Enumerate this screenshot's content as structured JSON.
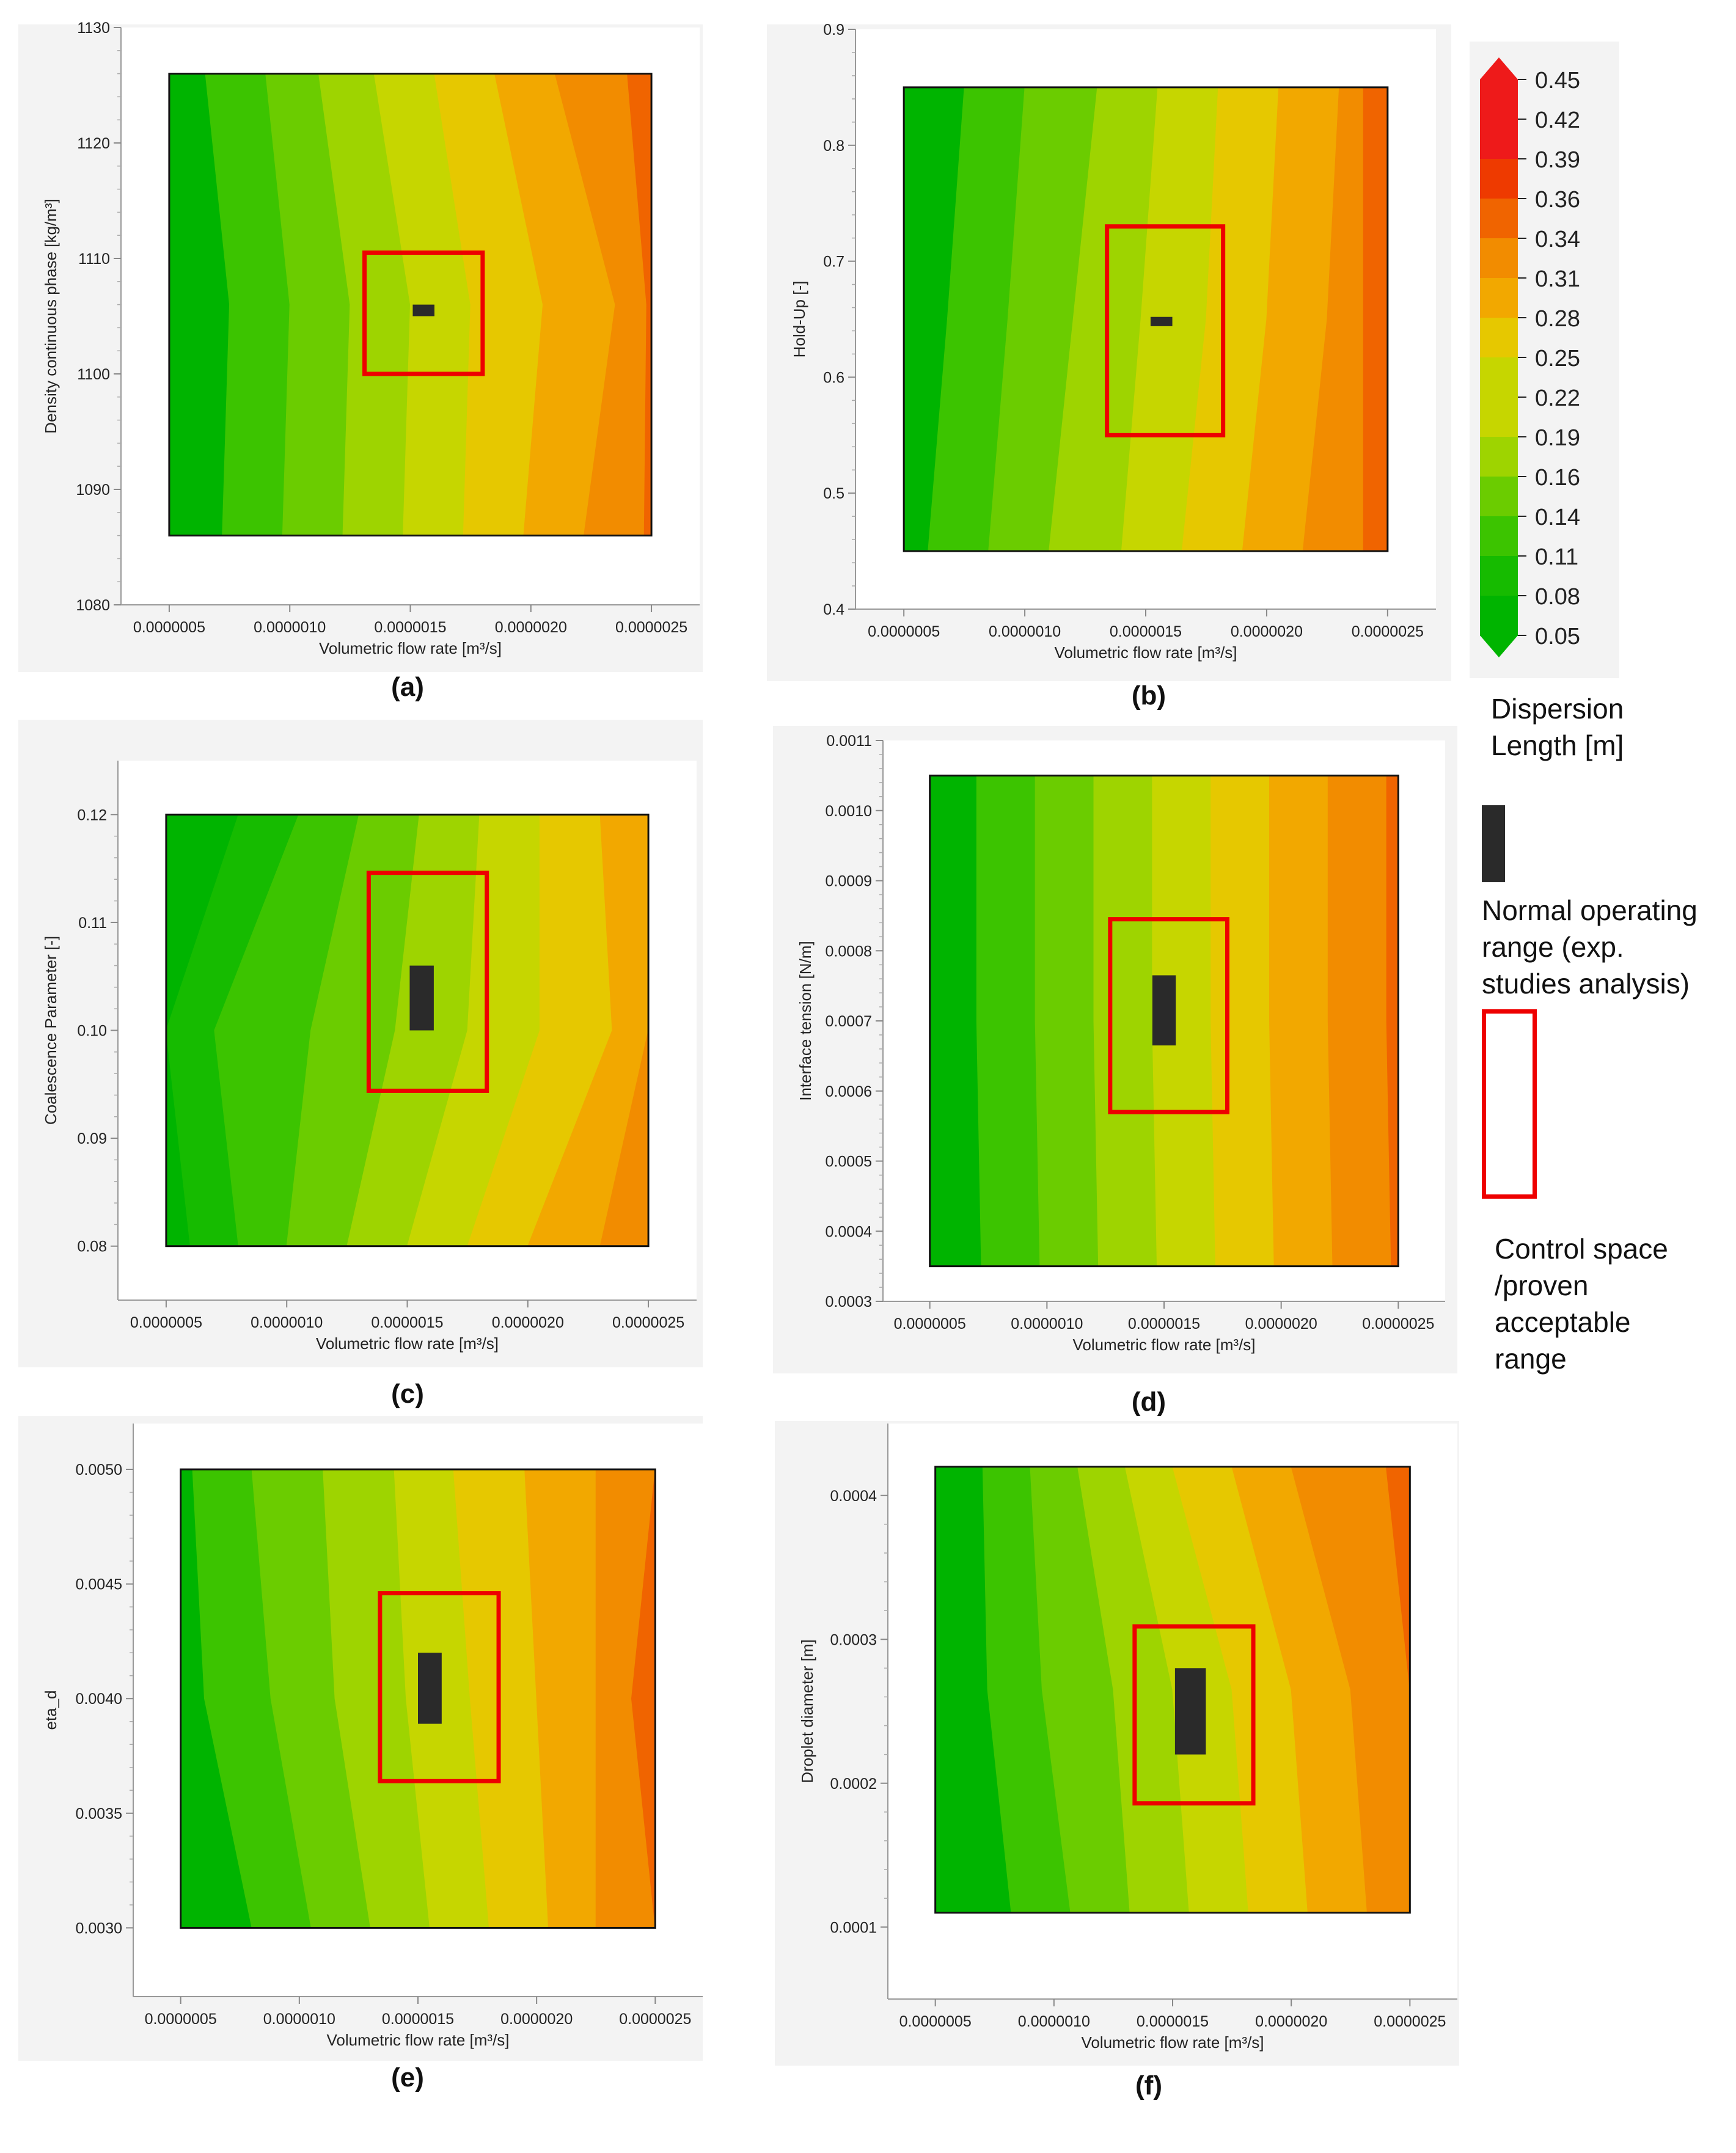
{
  "colors": {
    "contour_levels": [
      "#00b400",
      "#16bb00",
      "#3cc400",
      "#6bcc00",
      "#9ed400",
      "#c6d600",
      "#e6c800",
      "#f2a800",
      "#f28c00",
      "#f06400",
      "#ee3a00",
      "#ee1a1a"
    ],
    "control_box": "#ee0000",
    "operating_range": "#2a2a2a",
    "panel_bg": "#f3f3f3"
  },
  "legend": {
    "ticks": [
      "0.45",
      "0.42",
      "0.39",
      "0.36",
      "0.34",
      "0.31",
      "0.28",
      "0.25",
      "0.22",
      "0.19",
      "0.16",
      "0.14",
      "0.11",
      "0.08",
      "0.05"
    ],
    "title_line1": "Dispersion",
    "title_line2": "Length [m]",
    "normal_line1": "Normal operating",
    "normal_line2": "range (exp.",
    "normal_line3": "studies analysis)",
    "control_line1": "Control space",
    "control_line2": "/proven",
    "control_line3": "acceptable",
    "control_line4": "range"
  },
  "chart_data": [
    {
      "type": "heatmap",
      "label": "(a)",
      "xlabel": "Volumetric flow rate [m³/s]",
      "ylabel": "Density continuous phase [kg/m³]",
      "xlim": [
        3e-07,
        2.7e-06
      ],
      "x_ticks": [
        "0.0000005",
        "0.0000010",
        "0.0000015",
        "0.0000020",
        "0.0000025"
      ],
      "x_tick_values": [
        5e-07,
        1e-06,
        1.5e-06,
        2e-06,
        2.5e-06
      ],
      "ylim": [
        1080,
        1130
      ],
      "y_ticks": [
        "1080",
        "1090",
        "1100",
        "1110",
        "1120",
        "1130"
      ],
      "y_tick_values": [
        1080,
        1090,
        1100,
        1110,
        1120,
        1130
      ],
      "plot_x": [
        5e-07,
        2.5e-06
      ],
      "plot_y": [
        1086,
        1126
      ],
      "control_space": {
        "x": [
          1.31e-06,
          1.8e-06
        ],
        "y": [
          1100,
          1110.5
        ]
      },
      "operating_range": {
        "x": [
          1.51e-06,
          1.6e-06
        ],
        "y": [
          1105,
          1106
        ]
      },
      "band_x_bottom": [
        7.2e-07,
        9.7e-07,
        1.22e-06,
        1.47e-06,
        1.72e-06,
        1.97e-06,
        2.22e-06,
        2.47e-06
      ],
      "band_x_mid": [
        7.5e-07,
        1e-06,
        1.25e-06,
        1.5e-06,
        1.75e-06,
        2.05e-06,
        2.35e-06,
        2.48e-06
      ],
      "band_x_top": [
        6.5e-07,
        9e-07,
        1.12e-06,
        1.35e-06,
        1.6e-06,
        1.85e-06,
        2.1e-06,
        2.4e-06
      ],
      "band_levels": [
        0,
        2,
        3,
        4,
        5,
        6,
        7,
        8,
        9
      ]
    },
    {
      "type": "heatmap",
      "label": "(b)",
      "xlabel": "Volumetric flow rate [m³/s]",
      "ylabel": "Hold-Up [-]",
      "xlim": [
        3e-07,
        2.7e-06
      ],
      "x_ticks": [
        "0.0000005",
        "0.0000010",
        "0.0000015",
        "0.0000020",
        "0.0000025"
      ],
      "x_tick_values": [
        5e-07,
        1e-06,
        1.5e-06,
        2e-06,
        2.5e-06
      ],
      "ylim": [
        0.4,
        0.9
      ],
      "y_ticks": [
        "0.4",
        "0.5",
        "0.6",
        "0.7",
        "0.8",
        "0.9"
      ],
      "y_tick_values": [
        0.4,
        0.5,
        0.6,
        0.7,
        0.8,
        0.9
      ],
      "plot_x": [
        5e-07,
        2.5e-06
      ],
      "plot_y": [
        0.45,
        0.85
      ],
      "control_space": {
        "x": [
          1.34e-06,
          1.82e-06
        ],
        "y": [
          0.55,
          0.73
        ]
      },
      "operating_range": {
        "x": [
          1.52e-06,
          1.61e-06
        ],
        "y": [
          0.644,
          0.652
        ]
      },
      "band_x_bottom": [
        6e-07,
        8.5e-07,
        1.1e-06,
        1.4e-06,
        1.65e-06,
        1.9e-06,
        2.15e-06,
        2.4e-06
      ],
      "band_x_mid": [
        6.8e-07,
        9.3e-07,
        1.2e-06,
        1.48e-06,
        1.75e-06,
        2e-06,
        2.25e-06,
        2.4e-06
      ],
      "band_x_top": [
        7.5e-07,
        1e-06,
        1.3e-06,
        1.55e-06,
        1.8e-06,
        2.05e-06,
        2.3e-06,
        2.4e-06
      ],
      "band_levels": [
        0,
        2,
        3,
        4,
        5,
        6,
        7,
        8,
        9
      ]
    },
    {
      "type": "heatmap",
      "label": "(c)",
      "xlabel": "Volumetric flow rate [m³/s]",
      "ylabel": "Coalescence Parameter [-]",
      "xlim": [
        3e-07,
        2.7e-06
      ],
      "x_ticks": [
        "0.0000005",
        "0.0000010",
        "0.0000015",
        "0.0000020",
        "0.0000025"
      ],
      "x_tick_values": [
        5e-07,
        1e-06,
        1.5e-06,
        2e-06,
        2.5e-06
      ],
      "ylim": [
        0.075,
        0.125
      ],
      "y_ticks": [
        "0.08",
        "0.09",
        "0.10",
        "0.11",
        "0.12"
      ],
      "y_tick_values": [
        0.08,
        0.09,
        0.1,
        0.11,
        0.12
      ],
      "plot_x": [
        5e-07,
        2.5e-06
      ],
      "plot_y": [
        0.08,
        0.12
      ],
      "control_space": {
        "x": [
          1.34e-06,
          1.83e-06
        ],
        "y": [
          0.0944,
          0.1146
        ]
      },
      "operating_range": {
        "x": [
          1.51e-06,
          1.61e-06
        ],
        "y": [
          0.1,
          0.106
        ]
      },
      "band_x_bottom": [
        6e-07,
        8e-07,
        1e-06,
        1.25e-06,
        1.5e-06,
        1.75e-06,
        2e-06,
        2.3e-06,
        2.5e-06
      ],
      "band_x_mid": [
        5e-07,
        7e-07,
        1.1e-06,
        1.45e-06,
        1.75e-06,
        2.05e-06,
        2.35e-06,
        2.5e-06,
        2.5e-06
      ],
      "band_x_top": [
        8e-07,
        1.05e-06,
        1.3e-06,
        1.55e-06,
        1.8e-06,
        2.05e-06,
        2.3e-06,
        2.5e-06,
        2.5e-06
      ],
      "band_levels": [
        0,
        1,
        2,
        3,
        4,
        5,
        6,
        7,
        8,
        9
      ]
    },
    {
      "type": "heatmap",
      "label": "(d)",
      "xlabel": "Volumetric flow rate [m³/s]",
      "ylabel": "Interface tension [N/m]",
      "xlim": [
        3e-07,
        2.7e-06
      ],
      "x_ticks": [
        "0.0000005",
        "0.0000010",
        "0.0000015",
        "0.0000020",
        "0.0000025"
      ],
      "x_tick_values": [
        5e-07,
        1e-06,
        1.5e-06,
        2e-06,
        2.5e-06
      ],
      "ylim": [
        0.0003,
        0.0011
      ],
      "y_ticks": [
        "0.0003",
        "0.0004",
        "0.0005",
        "0.0006",
        "0.0007",
        "0.0008",
        "0.0009",
        "0.0010",
        "0.0011"
      ],
      "y_tick_values": [
        0.0003,
        0.0004,
        0.0005,
        0.0006,
        0.0007,
        0.0008,
        0.0009,
        0.001,
        0.0011
      ],
      "plot_x": [
        5e-07,
        2.5e-06
      ],
      "plot_y": [
        0.00035,
        0.00105
      ],
      "control_space": {
        "x": [
          1.27e-06,
          1.77e-06
        ],
        "y": [
          0.00057,
          0.000845
        ]
      },
      "operating_range": {
        "x": [
          1.45e-06,
          1.55e-06
        ],
        "y": [
          0.000665,
          0.000765
        ]
      },
      "band_x_bottom": [
        7.2e-07,
        9.7e-07,
        1.22e-06,
        1.47e-06,
        1.72e-06,
        1.97e-06,
        2.22e-06,
        2.47e-06
      ],
      "band_x_mid": [
        7e-07,
        9.5e-07,
        1.2e-06,
        1.45e-06,
        1.7e-06,
        1.95e-06,
        2.2e-06,
        2.45e-06
      ],
      "band_x_top": [
        7e-07,
        9.5e-07,
        1.2e-06,
        1.45e-06,
        1.7e-06,
        1.95e-06,
        2.2e-06,
        2.45e-06
      ],
      "band_levels": [
        0,
        2,
        3,
        4,
        5,
        6,
        7,
        8,
        9
      ]
    },
    {
      "type": "heatmap",
      "label": "(e)",
      "xlabel": "Volumetric flow rate [m³/s]",
      "ylabel": "eta_d",
      "xlim": [
        3e-07,
        2.7e-06
      ],
      "x_ticks": [
        "0.0000005",
        "0.0000010",
        "0.0000015",
        "0.0000020",
        "0.0000025"
      ],
      "x_tick_values": [
        5e-07,
        1e-06,
        1.5e-06,
        2e-06,
        2.5e-06
      ],
      "ylim": [
        0.0027,
        0.0052
      ],
      "y_ticks": [
        "0.0030",
        "0.0035",
        "0.0040",
        "0.0045",
        "0.0050"
      ],
      "y_tick_values": [
        0.003,
        0.0035,
        0.004,
        0.0045,
        0.005
      ],
      "plot_x": [
        5e-07,
        2.5e-06
      ],
      "plot_y": [
        0.003,
        0.005
      ],
      "control_space": {
        "x": [
          1.34e-06,
          1.84e-06
        ],
        "y": [
          0.00364,
          0.00446
        ]
      },
      "operating_range": {
        "x": [
          1.5e-06,
          1.6e-06
        ],
        "y": [
          0.00389,
          0.0042
        ]
      },
      "band_x_bottom": [
        8e-07,
        1.05e-06,
        1.3e-06,
        1.55e-06,
        1.8e-06,
        2.05e-06,
        2.25e-06,
        2.5e-06
      ],
      "band_x_mid": [
        6e-07,
        8.8e-07,
        1.15e-06,
        1.45e-06,
        1.72e-06,
        2e-06,
        2.25e-06,
        2.4e-06
      ],
      "band_x_top": [
        5.5e-07,
        8e-07,
        1.1e-06,
        1.4e-06,
        1.65e-06,
        1.95e-06,
        2.25e-06,
        2.5e-06
      ],
      "band_levels": [
        0,
        2,
        3,
        4,
        5,
        6,
        7,
        8,
        9
      ]
    },
    {
      "type": "heatmap",
      "label": "(f)",
      "xlabel": "Volumetric flow rate [m³/s]",
      "ylabel": "Droplet diameter [m]",
      "xlim": [
        3e-07,
        2.7e-06
      ],
      "x_ticks": [
        "0.0000005",
        "0.0000010",
        "0.0000015",
        "0.0000020",
        "0.0000025"
      ],
      "x_tick_values": [
        5e-07,
        1e-06,
        1.5e-06,
        2e-06,
        2.5e-06
      ],
      "ylim": [
        5e-05,
        0.00045
      ],
      "y_ticks": [
        "0.0001",
        "0.0002",
        "0.0003",
        "0.0004"
      ],
      "y_tick_values": [
        0.0001,
        0.0002,
        0.0003,
        0.0004
      ],
      "plot_x": [
        5e-07,
        2.5e-06
      ],
      "plot_y": [
        0.00011,
        0.00042
      ],
      "control_space": {
        "x": [
          1.34e-06,
          1.84e-06
        ],
        "y": [
          0.000186,
          0.000309
        ]
      },
      "operating_range": {
        "x": [
          1.51e-06,
          1.64e-06
        ],
        "y": [
          0.00022,
          0.00028
        ]
      },
      "band_x_bottom": [
        8.2e-07,
        1.07e-06,
        1.32e-06,
        1.57e-06,
        1.82e-06,
        2.07e-06,
        2.32e-06,
        2.5e-06
      ],
      "band_x_mid": [
        7.2e-07,
        9.5e-07,
        1.25e-06,
        1.5e-06,
        1.75e-06,
        2e-06,
        2.25e-06,
        2.5e-06
      ],
      "band_x_top": [
        7e-07,
        9e-07,
        1.1e-06,
        1.3e-06,
        1.5e-06,
        1.75e-06,
        2e-06,
        2.4e-06
      ],
      "band_levels": [
        0,
        2,
        3,
        4,
        5,
        6,
        7,
        8,
        9
      ]
    }
  ]
}
